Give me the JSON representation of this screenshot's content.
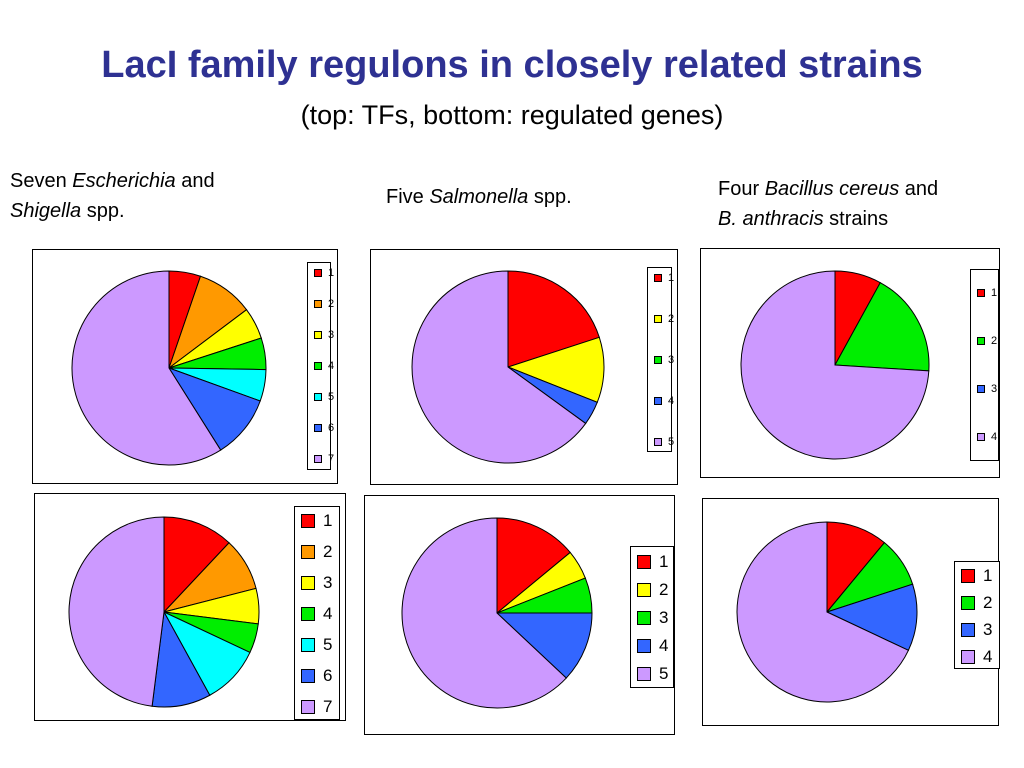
{
  "title": "LacI family regulons in closely related strains",
  "subtitle": "(top: TFs, bottom: regulated genes)",
  "columns": [
    {
      "parts": [
        {
          "text": "Seven ",
          "italic": false
        },
        {
          "text": "Escherichia",
          "italic": true
        },
        {
          "text": " and",
          "italic": false
        },
        {
          "text": "\n",
          "italic": false
        },
        {
          "text": "Shigella",
          "italic": true
        },
        {
          "text": " spp.",
          "italic": false
        }
      ]
    },
    {
      "parts": [
        {
          "text": "Five ",
          "italic": false
        },
        {
          "text": "Salmonella",
          "italic": true
        },
        {
          "text": " spp.",
          "italic": false
        }
      ]
    },
    {
      "parts": [
        {
          "text": "Four ",
          "italic": false
        },
        {
          "text": "Bacillus cereus",
          "italic": true
        },
        {
          "text": " and",
          "italic": false
        },
        {
          "text": "\n",
          "italic": false
        },
        {
          "text": "B. anthracis",
          "italic": true
        },
        {
          "text": " strains",
          "italic": false
        }
      ]
    }
  ],
  "colors": {
    "1": "#ff0000",
    "2": "#ff9900",
    "3": "#ffff00",
    "4": "#00ee00",
    "5": "#00ffff",
    "6": "#3366ff",
    "7": "#cc99ff"
  },
  "chart_data": [
    {
      "type": "pie",
      "row": "top",
      "column": 1,
      "categories": [
        "1",
        "2",
        "3",
        "4",
        "5",
        "6",
        "7"
      ],
      "values": [
        5,
        9,
        5,
        5,
        5,
        10,
        56
      ],
      "colors": [
        "#ff0000",
        "#ff9900",
        "#ffff00",
        "#00ee00",
        "#00ffff",
        "#3366ff",
        "#cc99ff"
      ],
      "legend": "right"
    },
    {
      "type": "pie",
      "row": "top",
      "column": 2,
      "categories": [
        "1",
        "2",
        "3",
        "4",
        "5"
      ],
      "values": [
        20,
        11,
        0,
        4,
        65
      ],
      "colors": [
        "#ff0000",
        "#ffff00",
        "#00ee00",
        "#3366ff",
        "#cc99ff"
      ],
      "legend": "right"
    },
    {
      "type": "pie",
      "row": "top",
      "column": 3,
      "categories": [
        "1",
        "2",
        "3",
        "4"
      ],
      "values": [
        8,
        18,
        0,
        74
      ],
      "colors": [
        "#ff0000",
        "#00ee00",
        "#3366ff",
        "#cc99ff"
      ],
      "legend": "right"
    },
    {
      "type": "pie",
      "row": "bottom",
      "column": 1,
      "categories": [
        "1",
        "2",
        "3",
        "4",
        "5",
        "6",
        "7"
      ],
      "values": [
        12,
        9,
        6,
        5,
        10,
        10,
        48
      ],
      "colors": [
        "#ff0000",
        "#ff9900",
        "#ffff00",
        "#00ee00",
        "#00ffff",
        "#3366ff",
        "#cc99ff"
      ],
      "legend": "right"
    },
    {
      "type": "pie",
      "row": "bottom",
      "column": 2,
      "categories": [
        "1",
        "2",
        "3",
        "4",
        "5"
      ],
      "values": [
        14,
        5,
        6,
        12,
        63
      ],
      "colors": [
        "#ff0000",
        "#ffff00",
        "#00ee00",
        "#3366ff",
        "#cc99ff"
      ],
      "legend": "right"
    },
    {
      "type": "pie",
      "row": "bottom",
      "column": 3,
      "categories": [
        "1",
        "2",
        "3",
        "4"
      ],
      "values": [
        11,
        9,
        12,
        68
      ],
      "colors": [
        "#ff0000",
        "#00ee00",
        "#3366ff",
        "#cc99ff"
      ],
      "legend": "right"
    }
  ]
}
